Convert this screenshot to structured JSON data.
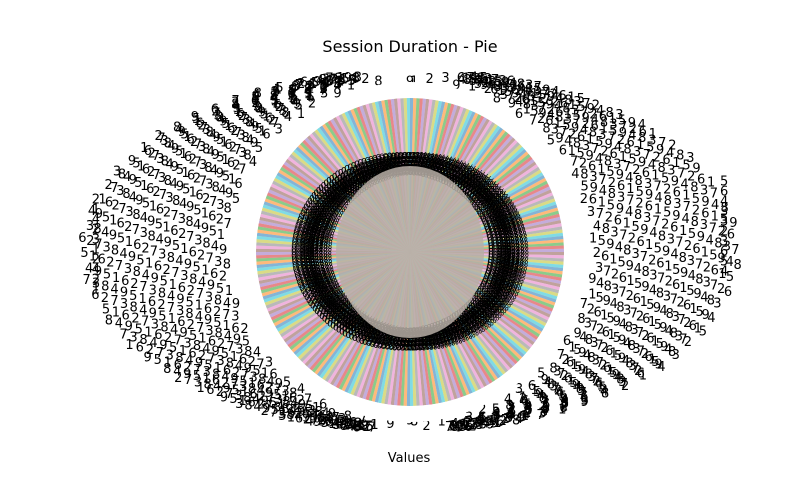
{
  "chart_data": {
    "type": "pie",
    "title": "Session Duration - Pie",
    "xlabel": "Values",
    "ylabel": "",
    "legend": "none",
    "grid": false,
    "visible_labels": {
      "top": "9",
      "bottom": "9",
      "right_side": [
        "5",
        "6",
        "4",
        "3",
        "3",
        "2",
        "3",
        "6",
        "5",
        "4"
      ],
      "left_side": [
        "2",
        "1",
        "4",
        "2",
        "3",
        "1",
        "2",
        "4",
        "2",
        "1"
      ]
    },
    "colors": [
      "#1f77b4",
      "#ff7f0e",
      "#2ca02c",
      "#d62728",
      "#9467bd",
      "#8c564b",
      "#e377c2",
      "#7f7f7f",
      "#bcbd22",
      "#17becf"
    ]
  }
}
